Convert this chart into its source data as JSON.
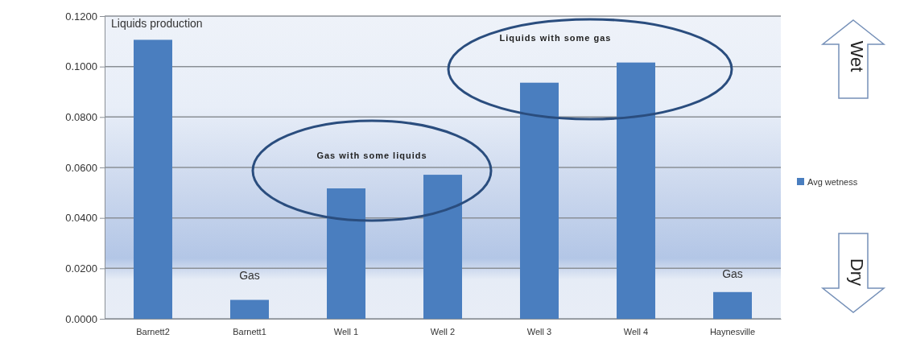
{
  "chart_data": {
    "type": "bar",
    "categories": [
      "Barnett2",
      "Barnett1",
      "Well 1",
      "Well 2",
      "Well 3",
      "Well 4",
      "Haynesville"
    ],
    "series": [
      {
        "name": "Avg wetness",
        "color": "#4a7ebf",
        "values": [
          0.1106,
          0.0075,
          0.0517,
          0.0571,
          0.0936,
          0.1016,
          0.0106
        ]
      }
    ],
    "ylim": [
      0,
      0.12
    ],
    "yticks": [
      {
        "value": 0,
        "label": "0.0000"
      },
      {
        "value": 0.02,
        "label": "0.0200"
      },
      {
        "value": 0.04,
        "label": "0.0400"
      },
      {
        "value": 0.06,
        "label": "0.0600"
      },
      {
        "value": 0.08,
        "label": "0.0800"
      },
      {
        "value": 0.1,
        "label": "0.1000"
      },
      {
        "value": 0.12,
        "label": "0.1200"
      }
    ],
    "grid": "y",
    "legend": "right",
    "annotations": [
      "Liquids production",
      "Gas",
      "Gas with some liquids",
      "Liquids with some gas",
      "Gas",
      "Wet",
      "Dry"
    ]
  }
}
